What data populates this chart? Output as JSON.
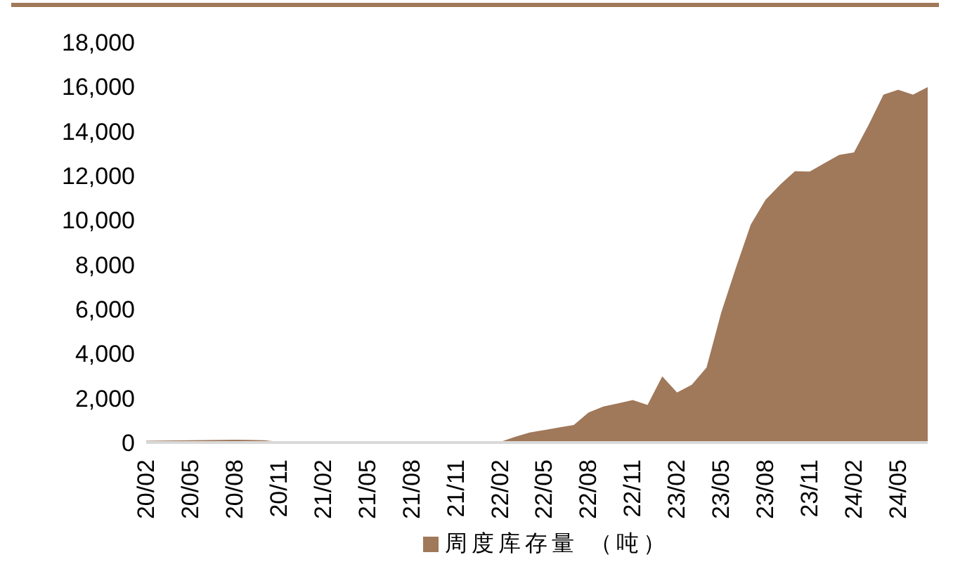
{
  "chart_data": {
    "type": "area",
    "categories": [
      "20/02",
      null,
      null,
      "20/05",
      null,
      null,
      "20/08",
      null,
      null,
      "20/11",
      null,
      null,
      "21/02",
      null,
      null,
      "21/05",
      null,
      null,
      "21/08",
      null,
      null,
      "21/11",
      null,
      null,
      "22/02",
      null,
      null,
      "22/05",
      null,
      null,
      "22/08",
      null,
      null,
      "22/11",
      null,
      null,
      "23/02",
      null,
      null,
      "23/05",
      null,
      null,
      "23/08",
      null,
      null,
      "23/11",
      null,
      null,
      "24/02",
      null,
      null,
      "24/05",
      null,
      null
    ],
    "series": [
      {
        "name": "周度库存量 （吨）",
        "color": "#a0785a",
        "values": [
          80,
          90,
          95,
          100,
          110,
          120,
          130,
          120,
          100,
          30,
          10,
          10,
          10,
          10,
          10,
          10,
          10,
          10,
          10,
          10,
          10,
          10,
          10,
          10,
          20,
          250,
          450,
          560,
          680,
          790,
          1350,
          1620,
          1760,
          1910,
          1690,
          2980,
          2250,
          2600,
          3370,
          5850,
          7870,
          9800,
          10910,
          11600,
          12200,
          12180,
          12560,
          12930,
          13040,
          14290,
          15640,
          15860,
          15640,
          15980
        ]
      }
    ],
    "ylim": [
      0,
      18000
    ],
    "yticks": [
      0,
      {
        "value": 2000,
        "label": "2,000"
      },
      {
        "value": 4000,
        "label": "4,000"
      },
      {
        "value": 6000,
        "label": "6,000"
      },
      {
        "value": 8000,
        "label": "8,000"
      },
      {
        "value": 10000,
        "label": "10,000"
      },
      {
        "value": 12000,
        "label": "12,000"
      },
      {
        "value": 14000,
        "label": "14,000"
      },
      {
        "value": 16000,
        "label": "16,000"
      },
      {
        "value": 18000,
        "label": "18,000"
      }
    ],
    "legend": "bottom"
  }
}
